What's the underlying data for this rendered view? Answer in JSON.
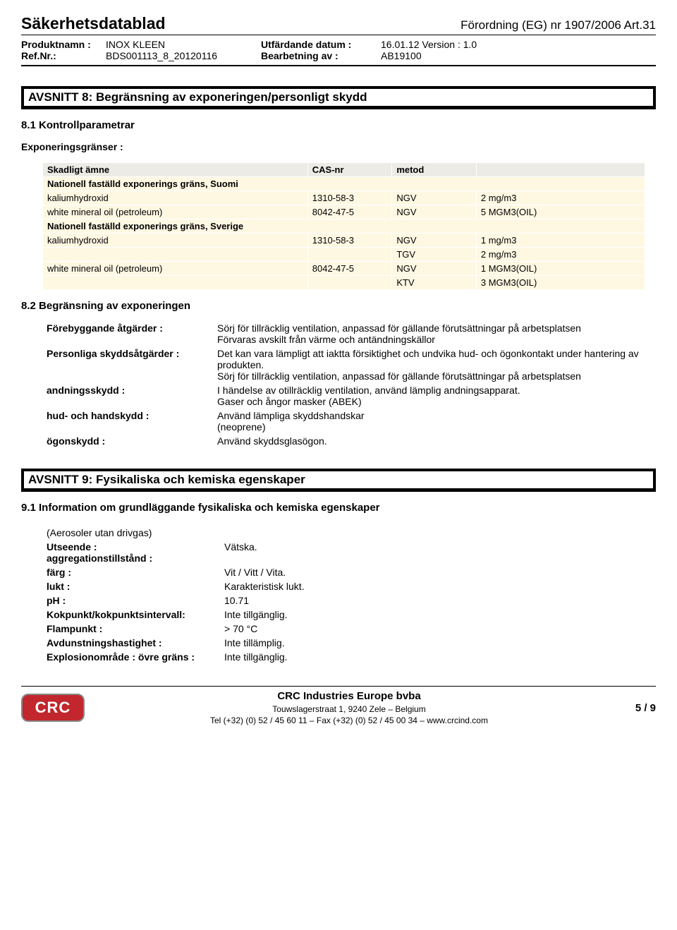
{
  "header": {
    "title": "Säkerhetsdatablad",
    "regulation": "Förordning (EG) nr 1907/2006 Art.31",
    "labels": {
      "product_name": "Produktnamn :",
      "ref_nr": "Ref.Nr.:",
      "issue_date": "Utfärdande datum :",
      "processed_by": "Bearbetning av :"
    },
    "values": {
      "product_name": "INOX KLEEN",
      "ref_nr": "BDS001113_8_20120116",
      "issue_date": "16.01.12 Version : 1.0",
      "processed_by": "AB19100"
    }
  },
  "section8": {
    "title": "AVSNITT 8: Begränsning av exponeringen/personligt skydd",
    "sub1_title": "8.1 Kontrollparametrar",
    "sub1_label": "Exponeringsgränser :",
    "table": {
      "col_headers": [
        "Skadligt ämne",
        "CAS-nr",
        "metod",
        ""
      ],
      "groups": [
        {
          "heading": "Nationell faställd exponerings gräns, Suomi"
        },
        {
          "row": [
            "kaliumhydroxid",
            "1310-58-3",
            "NGV",
            "2 mg/m3"
          ]
        },
        {
          "row": [
            "white mineral oil (petroleum)",
            "8042-47-5",
            "NGV",
            "5 MGM3(OIL)"
          ]
        },
        {
          "heading": "Nationell faställd exponerings gräns, Sverige"
        },
        {
          "row": [
            "kaliumhydroxid",
            "1310-58-3",
            "NGV",
            "1 mg/m3"
          ]
        },
        {
          "row": [
            "",
            "",
            "TGV",
            "2 mg/m3"
          ]
        },
        {
          "row": [
            "white mineral oil (petroleum)",
            "8042-47-5",
            "NGV",
            "1 MGM3(OIL)"
          ]
        },
        {
          "row": [
            "",
            "",
            "KTV",
            "3 MGM3(OIL)"
          ]
        }
      ],
      "col_widths": [
        "44%",
        "14%",
        "14%",
        "28%"
      ],
      "header_bg": "#ecebe6",
      "row_bg": "#fef8e3",
      "border_color": "#ffffff"
    },
    "sub2_title": "8.2 Begränsning av exponeringen",
    "measures": [
      {
        "label": "Förebyggande åtgärder :",
        "value": "Sörj för tillräcklig ventilation, anpassad för gällande förutsättningar på arbetsplatsen\nFörvaras avskilt från värme och antändningskällor"
      },
      {
        "label": "Personliga skyddsåtgärder :",
        "value": "Det kan vara lämpligt att iaktta försiktighet och undvika hud- och ögonkontakt under hantering av produkten.\nSörj för tillräcklig ventilation, anpassad för gällande förutsättningar på arbetsplatsen"
      },
      {
        "label": "andningsskydd :",
        "value": "I händelse av otillräcklig ventilation, använd lämplig andningsapparat.\nGaser och ångor masker (ABEK)"
      },
      {
        "label": "hud- och handskydd :",
        "value": "Använd lämpliga skyddshandskar\n(neoprene)"
      },
      {
        "label": "ögonskydd :",
        "value": "Använd skyddsglasögon."
      }
    ]
  },
  "section9": {
    "title": "AVSNITT 9: Fysikaliska och kemiska egenskaper",
    "sub1_title": "9.1 Information om grundläggande fysikaliska och kemiska egenskaper",
    "note": "(Aerosoler utan drivgas)",
    "props": [
      {
        "label": "Utseende :\naggregationstillstånd :",
        "value": "Vätska."
      },
      {
        "label": "färg :",
        "value": "Vit / Vitt / Vita."
      },
      {
        "label": "lukt :",
        "value": "Karakteristisk lukt."
      },
      {
        "label": "pH :",
        "value": "10.71"
      },
      {
        "label": "Kokpunkt/kokpunktsintervall:",
        "value": "Inte tillgänglig."
      },
      {
        "label": "Flampunkt :",
        "value": "> 70 °C"
      },
      {
        "label": "Avdunstningshastighet :",
        "value": "Inte tillämplig."
      },
      {
        "label": "Explosionområde : övre gräns :",
        "value": "Inte tillgänglig."
      }
    ]
  },
  "footer": {
    "logo": "CRC",
    "company": "CRC Industries Europe bvba",
    "address": "Touwslagerstraat 1, 9240 Zele – Belgium",
    "contact": "Tel (+32) (0) 52 / 45 60 11 – Fax (+32) (0) 52 / 45 00 34 – www.crcind.com",
    "page": "5 / 9"
  }
}
